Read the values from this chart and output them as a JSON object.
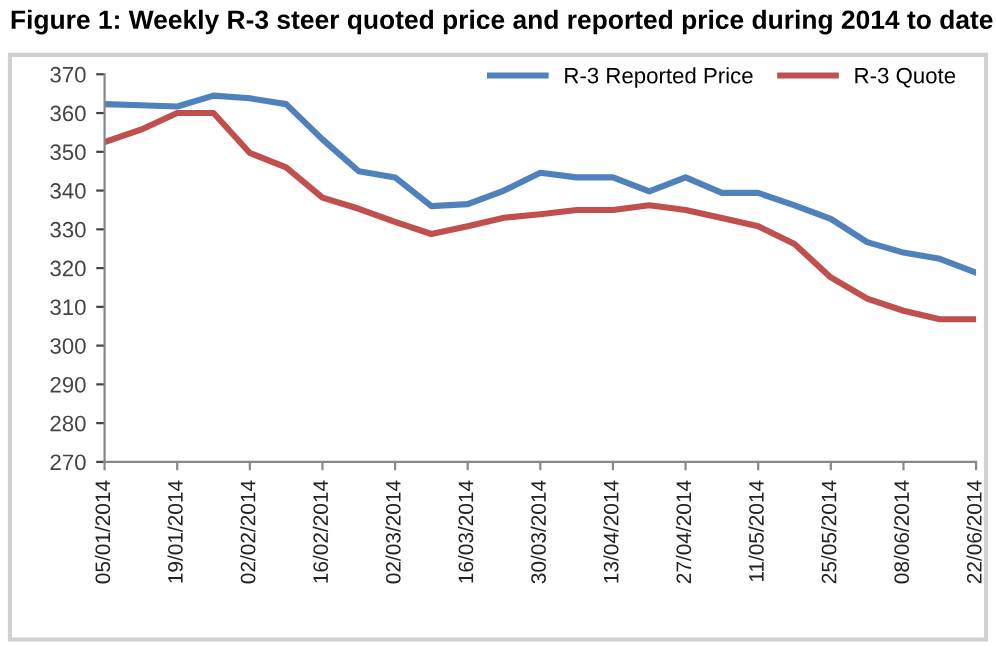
{
  "chart_data": {
    "type": "line",
    "title": "Figure 1: Weekly R-3 steer quoted price and reported price during 2014 to date",
    "categories": [
      "05/01/2014",
      null,
      "19/01/2014",
      null,
      "02/02/2014",
      null,
      "16/02/2014",
      null,
      "02/03/2014",
      null,
      "16/03/2014",
      null,
      "30/03/2014",
      null,
      "13/04/2014",
      null,
      "27/04/2014",
      null,
      "11/05/2014",
      null,
      "25/05/2014",
      null,
      "08/06/2014",
      null,
      "22/06/2014"
    ],
    "series": [
      {
        "name": "R-3 Reported Price",
        "color": "#4f81bd",
        "values": [
          362.3,
          362,
          361.7,
          364.5,
          363.8,
          362.3,
          353.2,
          345,
          343.4,
          336,
          336.5,
          340,
          344.6,
          343.4,
          343.4,
          339.8,
          343.4,
          339.4,
          339.4,
          336.2,
          332.7,
          326.7,
          324,
          322.4,
          318.8
        ]
      },
      {
        "name": "R-3 Quote",
        "color": "#c0504d",
        "values": [
          352.5,
          355.7,
          360,
          360,
          349.7,
          346,
          338.2,
          335.3,
          331.9,
          328.8,
          330.8,
          333,
          333.9,
          335,
          335,
          336.2,
          335,
          332.9,
          330.8,
          326.2,
          317.6,
          312.1,
          309,
          306.8,
          306.8
        ]
      }
    ],
    "ylim": [
      270,
      370
    ],
    "yticks": [
      270,
      280,
      290,
      300,
      310,
      320,
      330,
      340,
      350,
      360,
      370
    ],
    "grid": false,
    "legend": "top right"
  }
}
